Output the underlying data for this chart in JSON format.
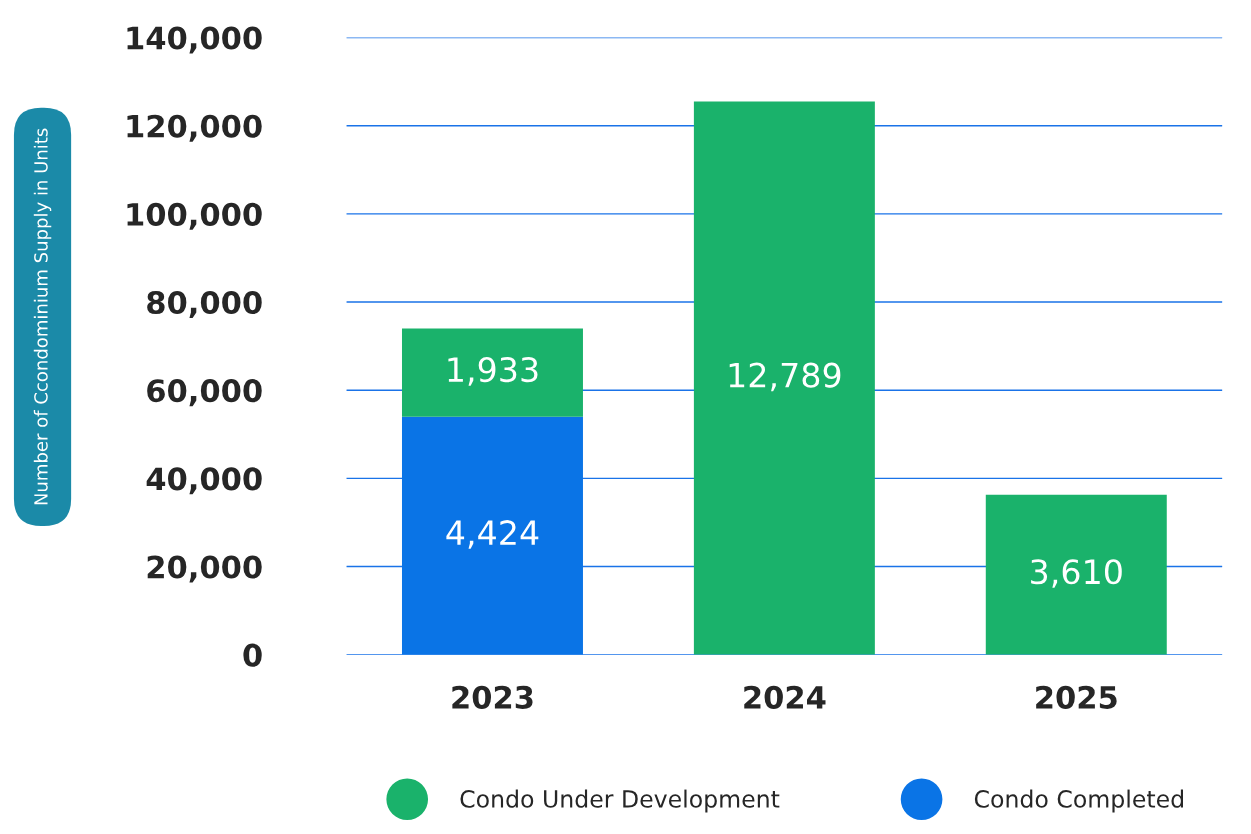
{
  "chart_data": {
    "type": "bar",
    "stacked": true,
    "ylabel": "Number of Ccondominium Supply in Units",
    "categories": [
      "2023",
      "2024",
      "2025"
    ],
    "series": [
      {
        "name": "Condo Completed",
        "color": "#0a74e6",
        "values": [
          54000,
          null,
          null
        ]
      },
      {
        "name": "Condo Under Development",
        "color": "#1ab26b",
        "values": [
          20000,
          125500,
          36300
        ]
      }
    ],
    "annotations": [
      "4,424",
      "1,933",
      "12,789",
      "3,610"
    ],
    "ylim": [
      0,
      140000
    ],
    "yticks": [
      {
        "value": 0,
        "label": "0"
      },
      {
        "value": 20000,
        "label": "20,000"
      },
      {
        "value": 40000,
        "label": "40,000"
      },
      {
        "value": 60000,
        "label": "60,000"
      },
      {
        "value": 80000,
        "label": "80,000"
      },
      {
        "value": 100000,
        "label": "100,000"
      },
      {
        "value": 120000,
        "label": "120,000"
      },
      {
        "value": 140000,
        "label": "140,000"
      }
    ],
    "grid": "y",
    "legend": "bottom"
  }
}
